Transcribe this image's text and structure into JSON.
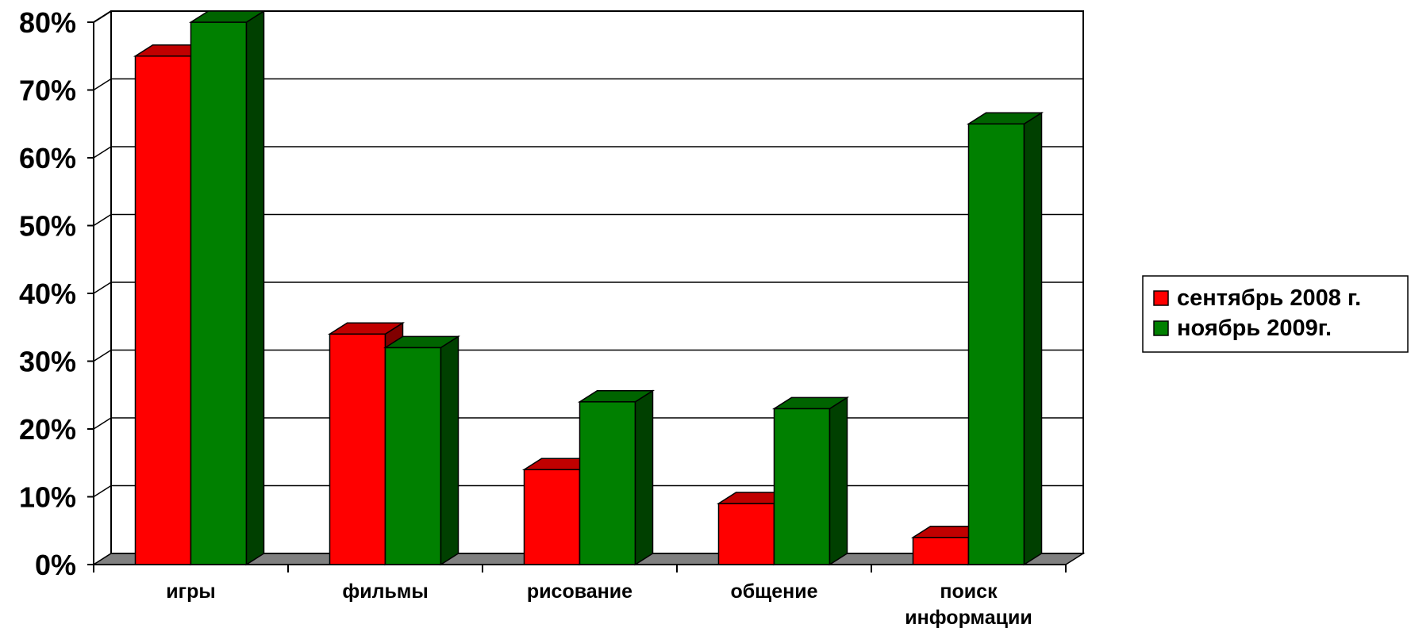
{
  "chart_data": {
    "type": "bar",
    "categories": [
      [
        "игры"
      ],
      [
        "фильмы"
      ],
      [
        "рисование"
      ],
      [
        "общение"
      ],
      [
        "поиск",
        "информации"
      ]
    ],
    "series": [
      {
        "name": "сентябрь 2008 г.",
        "values": [
          75,
          34,
          14,
          9,
          4
        ],
        "color": "#ff0000",
        "top": "#c00000",
        "side": "#800000"
      },
      {
        "name": "ноябрь 2009г.",
        "values": [
          80,
          32,
          24,
          23,
          65
        ],
        "color": "#008000",
        "top": "#006400",
        "side": "#004000"
      }
    ],
    "yticks": [
      "0%",
      "10%",
      "20%",
      "30%",
      "40%",
      "50%",
      "60%",
      "70%",
      "80%"
    ],
    "ylim": [
      0,
      80
    ],
    "grid": true,
    "legend_position": "right"
  }
}
